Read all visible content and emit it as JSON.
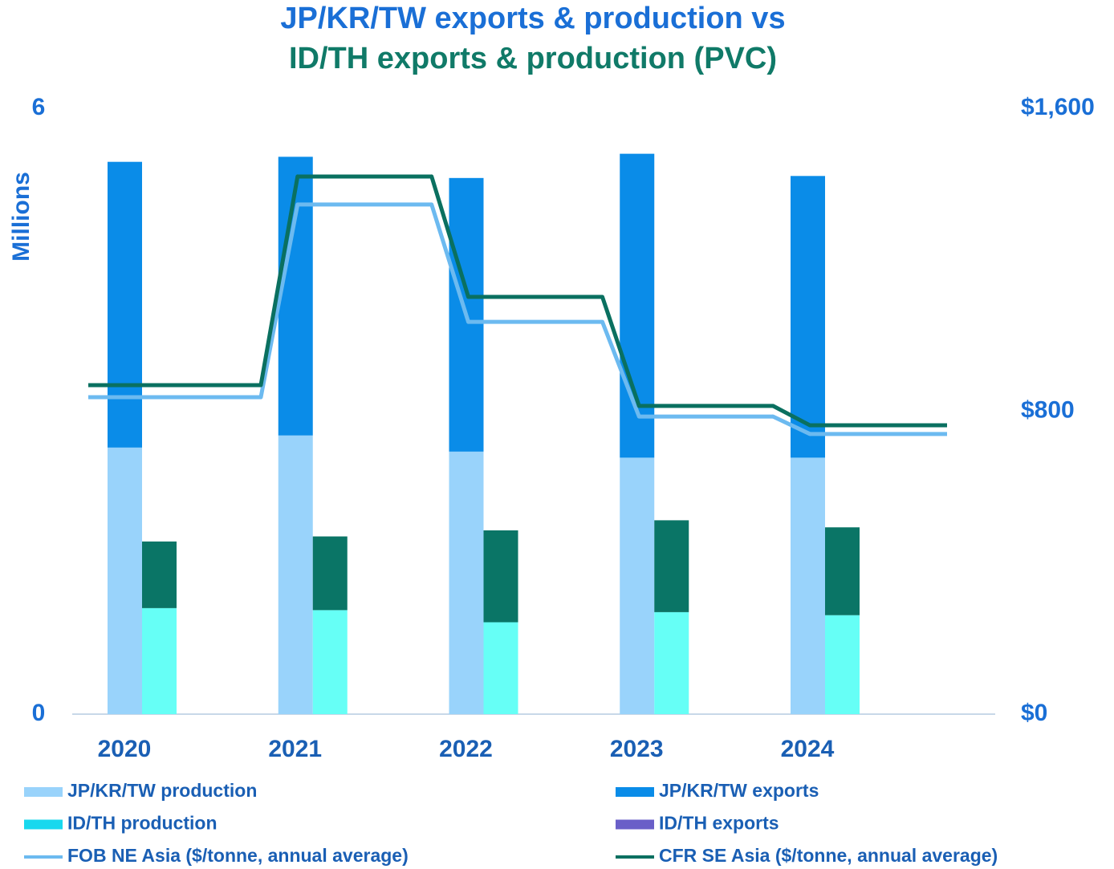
{
  "chart_data": {
    "type": "bar",
    "title_lines": [
      {
        "text": "JP/KR/TW exports & production vs",
        "color": "#1a6fd6"
      },
      {
        "text": "ID/TH exports & production (PVC)",
        "color": "#107a68"
      }
    ],
    "ylabel": "Millions",
    "categories": [
      "2020",
      "2021",
      "2022",
      "2023",
      "2024"
    ],
    "ylim": [
      0,
      6
    ],
    "yticks": [
      0,
      6
    ],
    "y2lim": [
      0,
      1600
    ],
    "y2ticks": [
      {
        "value": 0,
        "label": "$0"
      },
      {
        "value": 800,
        "label": "$800"
      },
      {
        "value": 1600,
        "label": "$1,600"
      }
    ],
    "series": [
      {
        "name": "JP/KR/TW production",
        "color": "#99d3fb",
        "stack": 0,
        "values": [
          2.64,
          2.76,
          2.6,
          2.54,
          2.54
        ]
      },
      {
        "name": "JP/KR/TW exports",
        "color": "#0a8ce8",
        "stack": 0,
        "values": [
          2.83,
          2.76,
          2.71,
          3.01,
          2.79
        ]
      },
      {
        "name": "ID/TH production",
        "color": "#66fff6",
        "legend_color": "#18d8ee",
        "stack": 1,
        "values": [
          1.05,
          1.03,
          0.91,
          1.01,
          0.98
        ]
      },
      {
        "name": "ID/TH exports",
        "color": "#0a7566",
        "legend_color": "#6a5fc8",
        "stack": 1,
        "values": [
          0.66,
          0.73,
          0.91,
          0.91,
          0.87
        ]
      },
      {
        "name": "FOB NE Asia ($/tonne, annual average)",
        "type": "line",
        "axis": "y2",
        "color": "#6cbaf0",
        "values": [
          837,
          1346,
          1036,
          786,
          740
        ]
      },
      {
        "name": "CFR SE Asia ($/tonne, annual average)",
        "type": "line",
        "axis": "y2",
        "color": "#0a7060",
        "values": [
          869,
          1420,
          1102,
          814,
          763
        ]
      }
    ]
  }
}
